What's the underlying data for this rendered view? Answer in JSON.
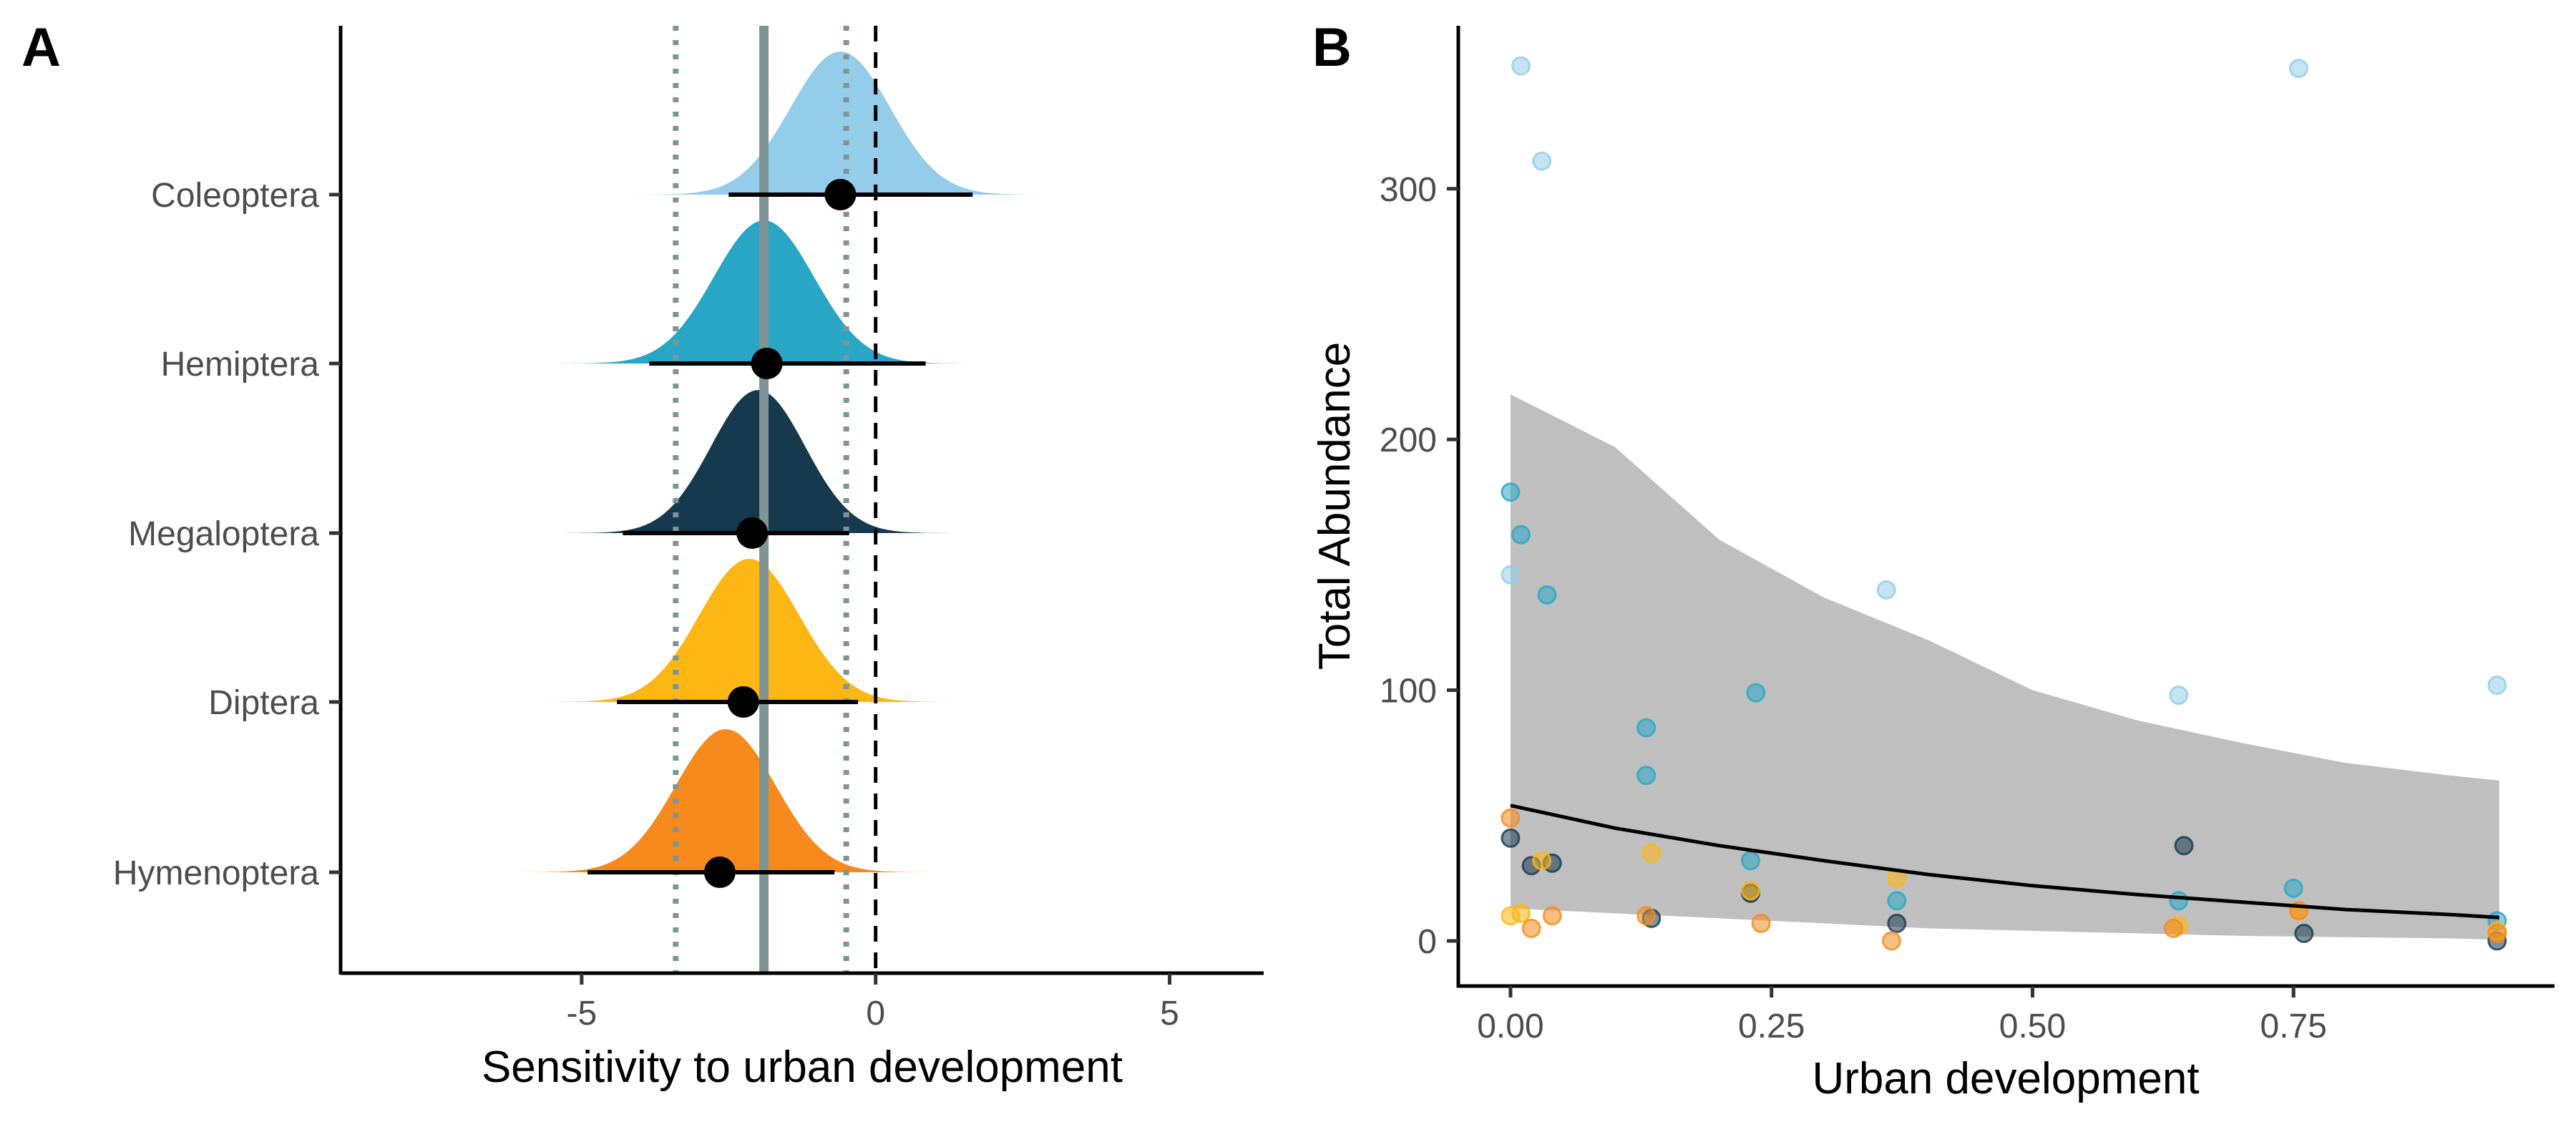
{
  "chart_data": [
    {
      "panel_label": "A",
      "type": "density",
      "xlabel": "Sensitivity to urban development",
      "ylabel": "",
      "xlim": [
        -9.1,
        6.6
      ],
      "xticks": [
        -5,
        0,
        5
      ],
      "xtick_labels": [
        "-5",
        "0",
        "5"
      ],
      "reference_lines": {
        "overall_mean": -1.9,
        "overall_interval": [
          -3.4,
          -0.5
        ],
        "zero": 0
      },
      "series": [
        {
          "name": "Coleoptera",
          "color": "#93CDEA",
          "mode": -0.6,
          "mean": -0.6,
          "sd": 0.85,
          "point": -0.6,
          "interval": [
            -2.5,
            1.65
          ],
          "tail": [
            -5.6,
            5.4
          ]
        },
        {
          "name": "Hemiptera",
          "color": "#29A6C5",
          "mode": -1.9,
          "mean": -1.85,
          "sd": 0.85,
          "point": -1.85,
          "interval": [
            -3.85,
            0.85
          ],
          "tail": [
            -6.3,
            4.9
          ]
        },
        {
          "name": "Megaloptera",
          "color": "#16394E",
          "mode": -2.0,
          "mean": -2.1,
          "sd": 0.8,
          "point": -2.1,
          "interval": [
            -4.3,
            -0.45
          ],
          "tail": [
            -7.9,
            3.7
          ]
        },
        {
          "name": "Diptera",
          "color": "#FDB714",
          "mode": -2.15,
          "mean": -2.25,
          "sd": 0.85,
          "point": -2.25,
          "interval": [
            -4.4,
            -0.3
          ],
          "tail": [
            -7.4,
            3.3
          ]
        },
        {
          "name": "Hymenoptera",
          "color": "#F68A1D",
          "mode": -2.55,
          "mean": -2.65,
          "sd": 0.85,
          "point": -2.65,
          "interval": [
            -4.9,
            -0.7
          ],
          "tail": [
            -7.9,
            3.2
          ]
        }
      ]
    },
    {
      "panel_label": "B",
      "type": "scatter",
      "xlabel": "Urban development",
      "ylabel": "Total Abundance",
      "xlim": [
        -0.05,
        1.0
      ],
      "ylim": [
        -18,
        365
      ],
      "xticks": [
        0,
        0.25,
        0.5,
        0.75
      ],
      "xtick_labels": [
        "0.00",
        "0.25",
        "0.50",
        "0.75"
      ],
      "yticks": [
        0,
        100,
        200,
        300
      ],
      "ytick_labels": [
        "0",
        "100",
        "200",
        "300"
      ],
      "fit": {
        "x": [
          0.0,
          0.1,
          0.2,
          0.3,
          0.4,
          0.5,
          0.6,
          0.7,
          0.8,
          0.9,
          0.947
        ],
        "y": [
          54,
          45,
          38,
          32,
          26.5,
          22,
          18.5,
          15.5,
          12.5,
          10.5,
          9.3
        ],
        "ci_upper": [
          218,
          197,
          160,
          137,
          120,
          100,
          88,
          79,
          71,
          66,
          64
        ],
        "ci_lower": [
          13,
          11,
          9,
          7,
          5,
          4,
          3,
          2,
          1.5,
          1,
          0.5
        ]
      },
      "series": [
        {
          "name": "Coleoptera",
          "color": "#93CDEA",
          "points": [
            [
              0.0,
              146
            ],
            [
              0.01,
              349
            ],
            [
              0.03,
              311
            ],
            [
              0.36,
              140
            ],
            [
              0.64,
              98
            ],
            [
              0.755,
              348
            ],
            [
              0.945,
              102
            ]
          ]
        },
        {
          "name": "Hemiptera",
          "color": "#29A6C5",
          "points": [
            [
              0.0,
              179
            ],
            [
              0.01,
              162
            ],
            [
              0.035,
              138
            ],
            [
              0.13,
              85
            ],
            [
              0.13,
              66
            ],
            [
              0.235,
              99
            ],
            [
              0.23,
              32
            ],
            [
              0.37,
              16
            ],
            [
              0.64,
              16
            ],
            [
              0.75,
              21
            ],
            [
              0.945,
              8
            ]
          ]
        },
        {
          "name": "Megaloptera",
          "color": "#16394E",
          "points": [
            [
              0.0,
              41
            ],
            [
              0.02,
              30
            ],
            [
              0.04,
              31
            ],
            [
              0.135,
              9
            ],
            [
              0.23,
              19
            ],
            [
              0.37,
              7
            ],
            [
              0.645,
              38
            ],
            [
              0.76,
              3
            ],
            [
              0.945,
              0
            ]
          ]
        },
        {
          "name": "Diptera",
          "color": "#FDB714",
          "points": [
            [
              0.0,
              10
            ],
            [
              0.01,
              11
            ],
            [
              0.03,
              32
            ],
            [
              0.135,
              35
            ],
            [
              0.23,
              20
            ],
            [
              0.37,
              25
            ],
            [
              0.64,
              6
            ],
            [
              0.755,
              12
            ],
            [
              0.945,
              4
            ]
          ]
        },
        {
          "name": "Hymenoptera",
          "color": "#F68A1D",
          "points": [
            [
              0.0,
              49
            ],
            [
              0.02,
              5
            ],
            [
              0.04,
              10
            ],
            [
              0.13,
              10
            ],
            [
              0.24,
              7
            ],
            [
              0.365,
              0
            ],
            [
              0.635,
              5
            ],
            [
              0.755,
              12
            ],
            [
              0.945,
              3
            ]
          ]
        }
      ]
    }
  ]
}
